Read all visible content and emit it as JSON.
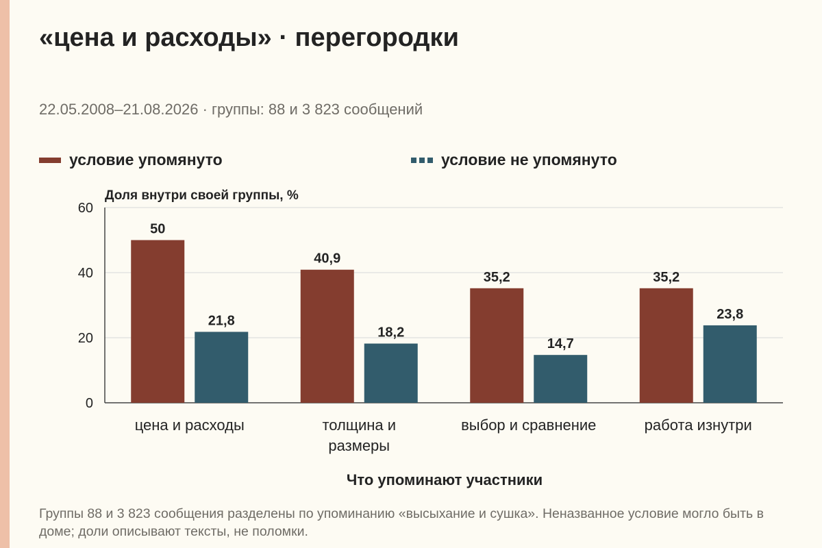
{
  "header": {
    "title": "«цена и расходы» · перегородки",
    "subtitle": "22.05.2008–21.08.2026 · группы: 88 и 3 823 сообщений"
  },
  "footnote": "Группы 88 и 3 823 сообщения разделены по упоминанию «высыхание и сушка». Неназванное условие могло быть в доме; доли описывают тексты, не поломки.",
  "colors": {
    "mentioned": "#843d2f",
    "not_mentioned": "#325c6c",
    "grid": "#d8d8d8",
    "axis": "#444444",
    "text": "#232323",
    "background": "#fdfbf3",
    "accent_bar": "#eec0a8"
  },
  "chart_data": {
    "type": "bar",
    "title": "«цена и расходы» · перегородки",
    "ylabel": "Доля внутри своей группы, %",
    "xlabel": "Что упоминают участники",
    "ylim": [
      0,
      60
    ],
    "yticks": [
      0,
      20,
      40,
      60
    ],
    "grid": true,
    "legend_position": "top",
    "categories": [
      "цена и расходы",
      "толщина и размеры",
      "выбор и сравнение",
      "работа изнутри"
    ],
    "category_label_lines": [
      [
        "цена и расходы"
      ],
      [
        "толщина и",
        "размеры"
      ],
      [
        "выбор и сравнение"
      ],
      [
        "работа изнутри"
      ]
    ],
    "series": [
      {
        "name": "условие упомянуто",
        "values": [
          50,
          40.9,
          35.2,
          35.2
        ],
        "labels": [
          "50",
          "40,9",
          "35,2",
          "35,2"
        ],
        "color": "#843d2f",
        "legend_style": "solid"
      },
      {
        "name": "условие не упомянуто",
        "values": [
          21.8,
          18.2,
          14.7,
          23.8
        ],
        "labels": [
          "21,8",
          "18,2",
          "14,7",
          "23,8"
        ],
        "color": "#325c6c",
        "legend_style": "dashed"
      }
    ]
  }
}
